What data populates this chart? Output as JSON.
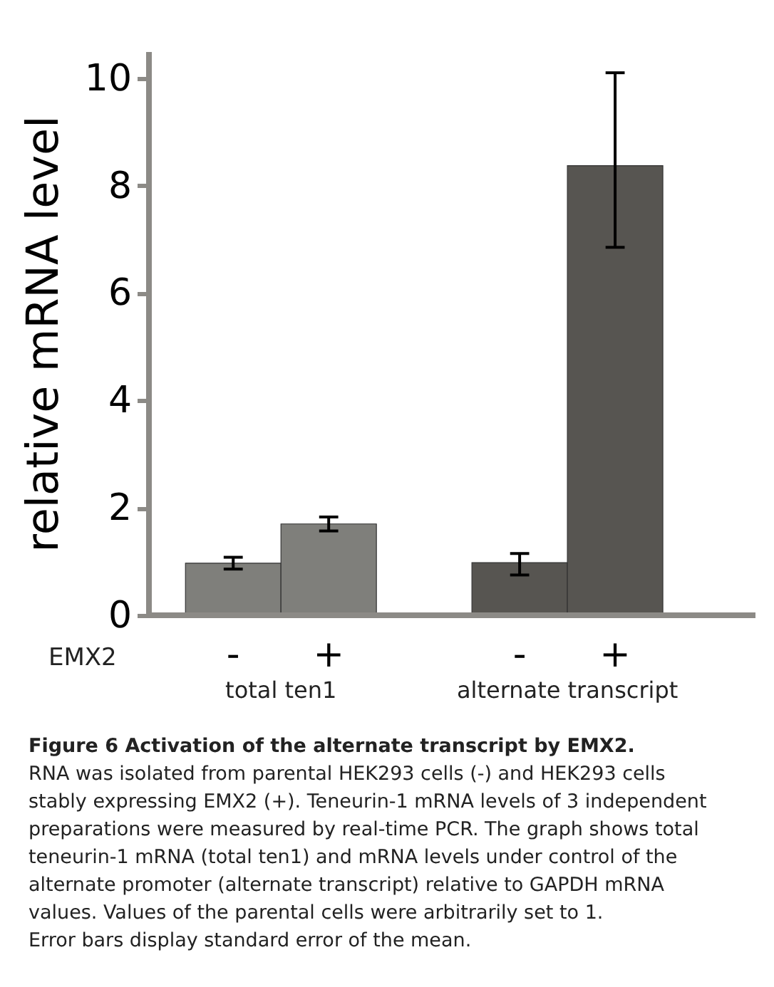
{
  "chart_data": {
    "type": "bar",
    "categories": [
      "-",
      "+",
      "-",
      "+"
    ],
    "values": [
      0.97,
      1.7,
      0.98,
      8.37
    ],
    "errors": [
      0.11,
      0.13,
      [
        0.75,
        1.15
      ],
      [
        6.85,
        10.1
      ]
    ],
    "colors": [
      "#7f7f7b",
      "#7f7f7b",
      "#575551",
      "#575551"
    ],
    "ylabel": "relative mRNA level",
    "ylim": [
      0,
      10.5
    ],
    "yticks": [
      0,
      2,
      4,
      6,
      8,
      10
    ],
    "grid": false,
    "annotations": [
      "EMX2",
      "total ten1",
      "alternate transcript",
      "Figure 6 Activation of the alternate transcript by EMX2.",
      "RNA was isolated from parental HEK293 cells (-) and HEK293 cells stably expressing EMX2 (+). Teneurin-1 mRNA levels of 3 independent preparations were measured by real-time PCR. The graph shows total teneurin-1 mRNA (total ten1) and mRNA levels under control of the alternate promoter (alternate transcript) relative to GAPDH mRNA values. Values of the parental cells were arbitrarily set to 1. Error bars display standard error of the mean."
    ]
  }
}
